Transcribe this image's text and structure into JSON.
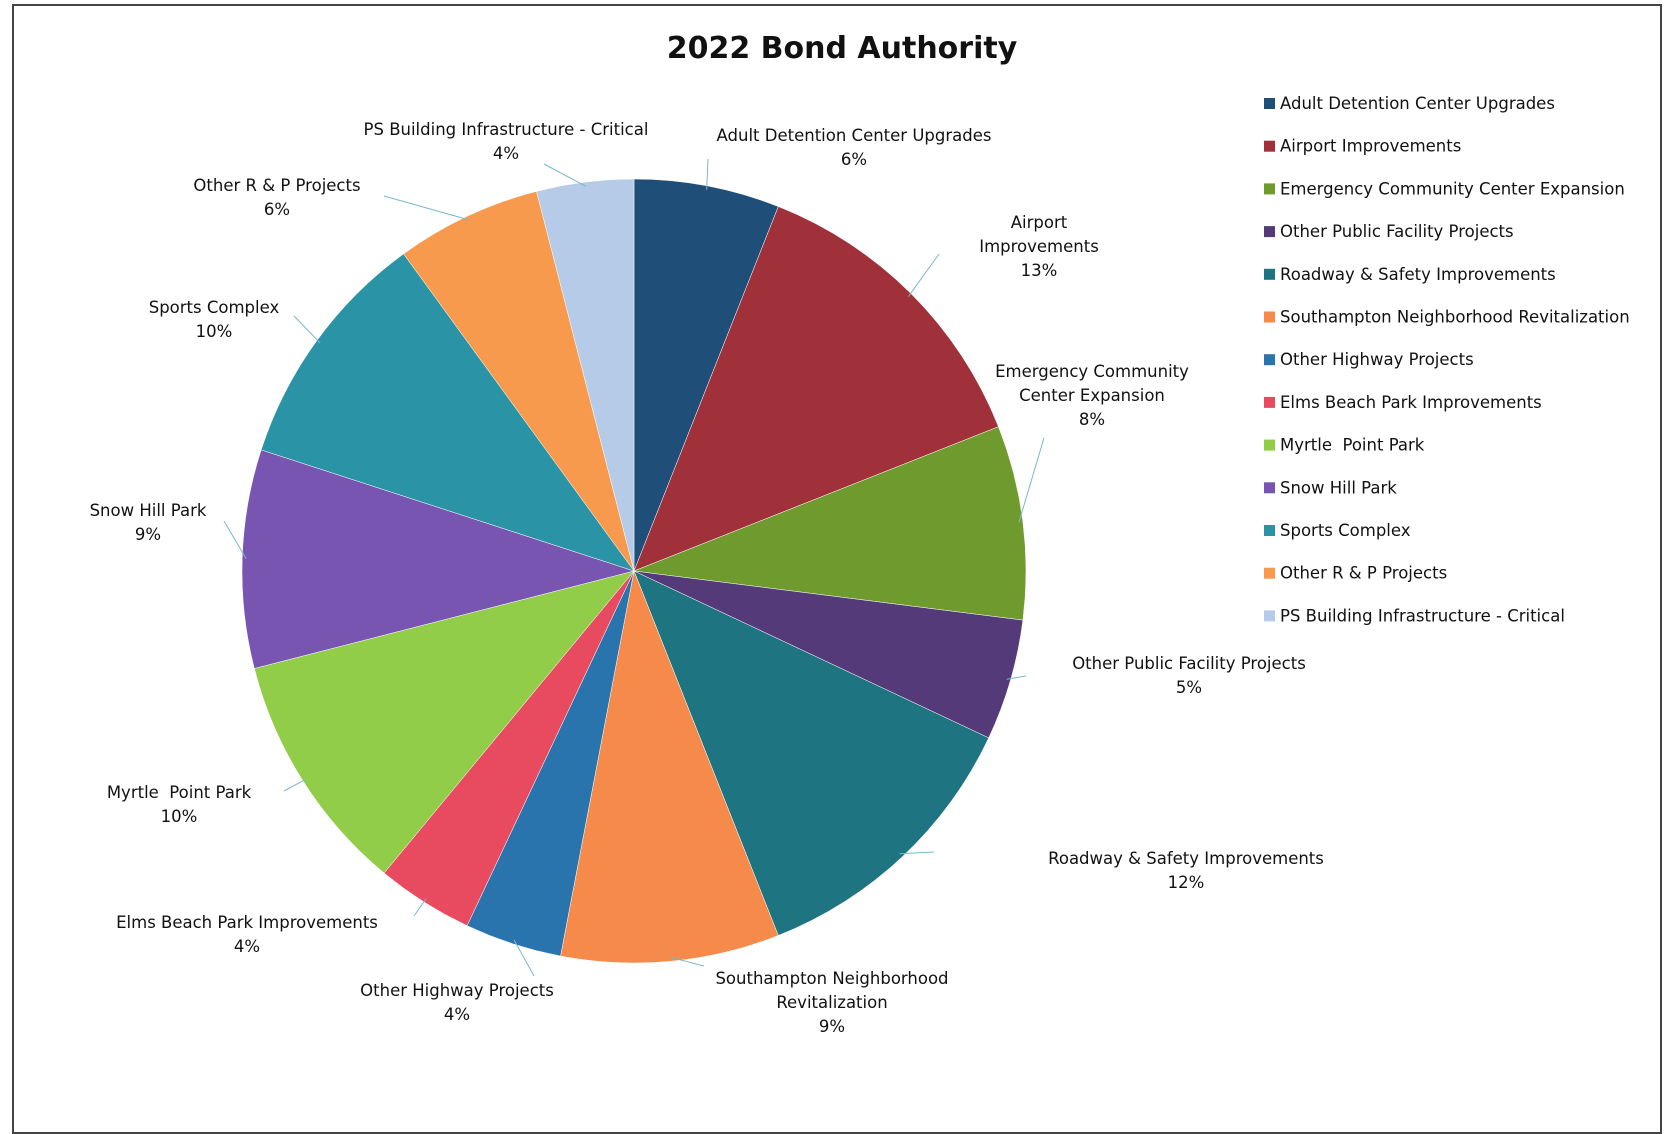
{
  "chart_data": {
    "type": "pie",
    "title": "2022 Bond Authority",
    "legend_position": "right",
    "start_angle_deg": 0,
    "direction": "clockwise",
    "series": [
      {
        "name": "Adult Detention Center Upgrades",
        "value": 6,
        "percent_label": "6%",
        "label_lines": [
          "Adult Detention Center Upgrades"
        ],
        "color": "#1f4e79"
      },
      {
        "name": "Airport Improvements",
        "value": 13,
        "percent_label": "13%",
        "label_lines": [
          "Airport",
          "Improvements"
        ],
        "color": "#a0303a"
      },
      {
        "name": "Emergency Community Center Expansion",
        "value": 8,
        "percent_label": "8%",
        "label_lines": [
          "Emergency Community",
          "Center Expansion"
        ],
        "color": "#6f9a2e"
      },
      {
        "name": "Other Public Facility Projects",
        "value": 5,
        "percent_label": "5%",
        "label_lines": [
          "Other Public Facility Projects"
        ],
        "color": "#553a7a"
      },
      {
        "name": "Roadway & Safety Improvements",
        "value": 12,
        "percent_label": "12%",
        "label_lines": [
          "Roadway & Safety Improvements"
        ],
        "color": "#1e7480"
      },
      {
        "name": "Southampton Neighborhood Revitalization",
        "value": 9,
        "percent_label": "9%",
        "label_lines": [
          "Southampton Neighborhood",
          "Revitalization"
        ],
        "color": "#f58a4a"
      },
      {
        "name": "Other Highway Projects",
        "value": 4,
        "percent_label": "4%",
        "label_lines": [
          "Other Highway Projects"
        ],
        "color": "#2a74ad"
      },
      {
        "name": "Elms Beach Park Improvements",
        "value": 4,
        "percent_label": "4%",
        "label_lines": [
          "Elms Beach Park Improvements"
        ],
        "color": "#e84a5f"
      },
      {
        "name": "Myrtle  Point Park",
        "value": 10,
        "percent_label": "10%",
        "label_lines": [
          "Myrtle  Point Park"
        ],
        "color": "#92cd4a"
      },
      {
        "name": "Snow Hill Park",
        "value": 9,
        "percent_label": "9%",
        "label_lines": [
          "Snow Hill Park"
        ],
        "color": "#7855b0"
      },
      {
        "name": "Sports Complex",
        "value": 10,
        "percent_label": "10%",
        "label_lines": [
          "Sports Complex"
        ],
        "color": "#2a93a6"
      },
      {
        "name": "Other R & P Projects",
        "value": 6,
        "percent_label": "6%",
        "label_lines": [
          "Other R & P Projects"
        ],
        "color": "#f89a4e"
      },
      {
        "name": "PS Building Infrastructure - Critical",
        "value": 4,
        "percent_label": "4%",
        "label_lines": [
          "PS Building Infrastructure - Critical"
        ],
        "color": "#b5cbe8"
      }
    ]
  }
}
